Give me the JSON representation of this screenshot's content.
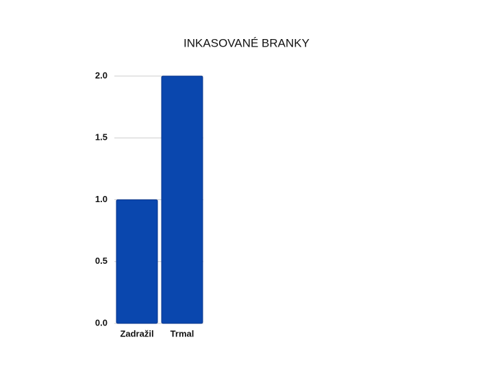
{
  "chart_data": {
    "type": "bar",
    "title": "INKASOVANÉ BRANKY",
    "categories": [
      "Zadražil",
      "Trmal"
    ],
    "values": [
      1,
      2
    ],
    "color": "#0a47ae",
    "ylim": [
      0,
      2
    ],
    "yticks": [
      {
        "value": 0,
        "label": "0.0"
      },
      {
        "value": 0.5,
        "label": "0.5"
      },
      {
        "value": 1,
        "label": "1.0"
      },
      {
        "value": 1.5,
        "label": "1.5"
      },
      {
        "value": 2,
        "label": "2.0"
      }
    ],
    "grid": true
  }
}
